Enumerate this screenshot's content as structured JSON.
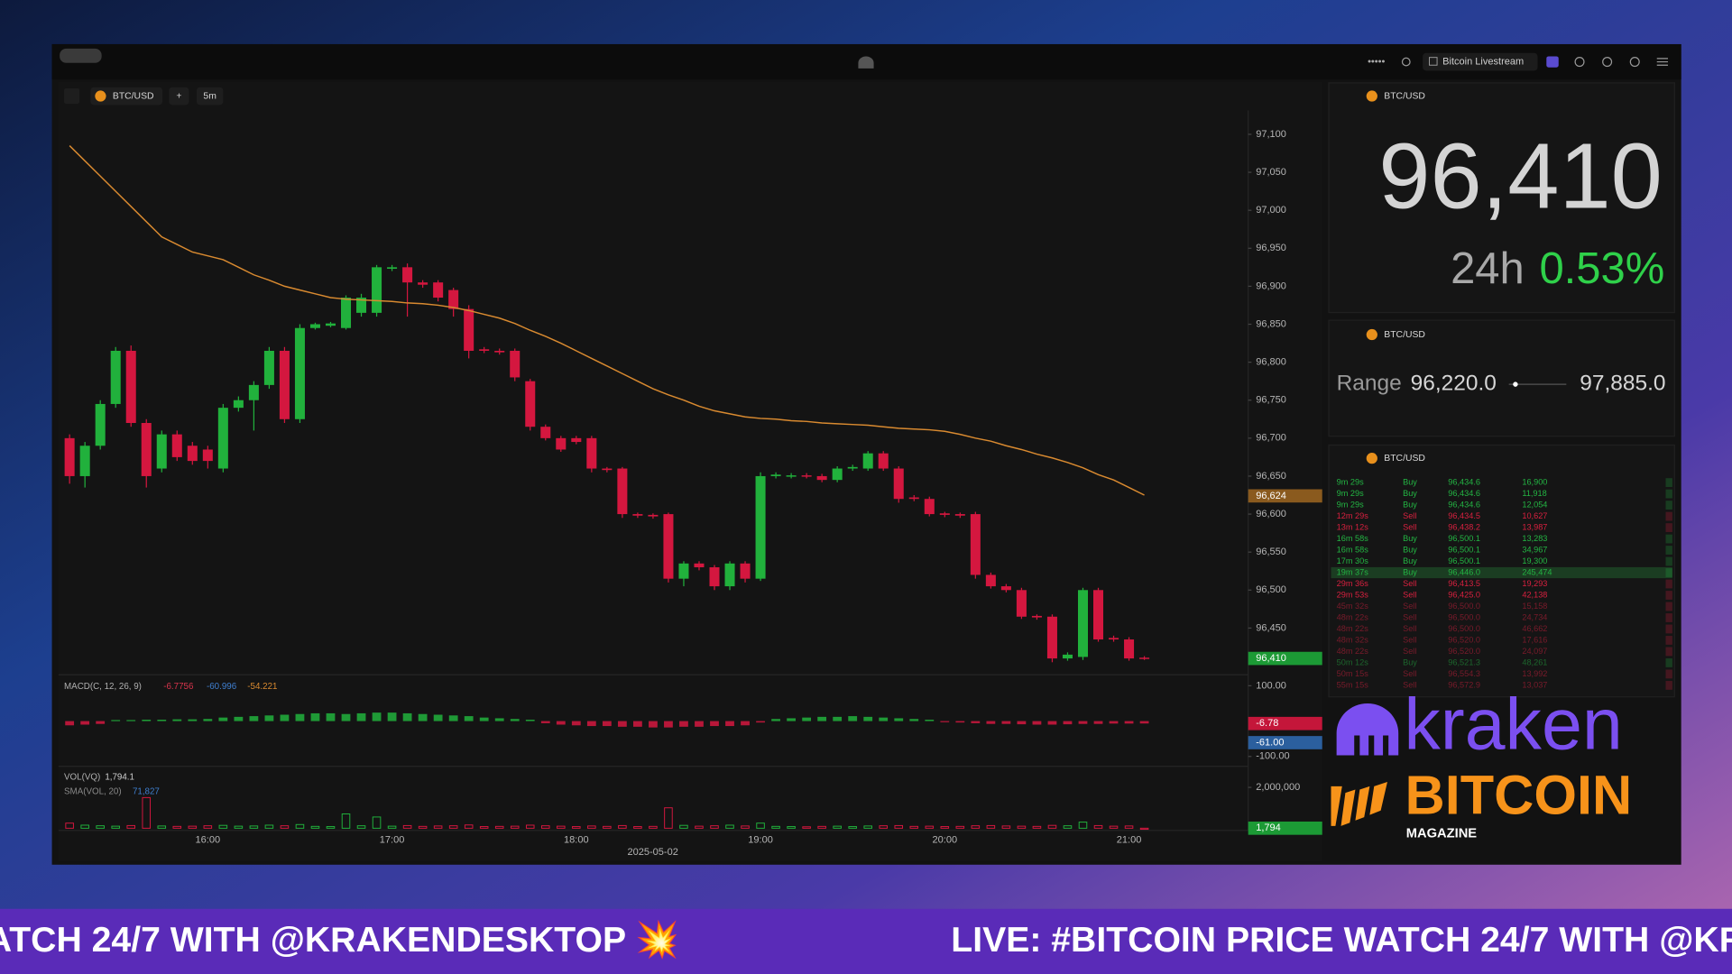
{
  "toolbar": {
    "title": "Bitcoin Livestream"
  },
  "chart_header": {
    "symbol": "BTC/USD",
    "add": "+",
    "interval": "5m"
  },
  "chart_data": {
    "type": "candlestick",
    "categories": [
      null,
      null,
      null,
      null,
      null,
      null,
      null,
      null,
      null,
      "16:00",
      null,
      null,
      null,
      null,
      null,
      null,
      null,
      null,
      null,
      null,
      null,
      "17:00",
      null,
      null,
      null,
      null,
      null,
      null,
      null,
      null,
      null,
      null,
      null,
      "18:00",
      null,
      null,
      null,
      null,
      null,
      null,
      null,
      null,
      null,
      null,
      null,
      "19:00",
      null,
      null,
      null,
      null,
      null,
      null,
      null,
      null,
      null,
      null,
      null,
      "20:00",
      null,
      null,
      null,
      null,
      null,
      null,
      null,
      null,
      null,
      null,
      null,
      "21:00",
      null
    ],
    "date_label": "2025-05-02",
    "open": [
      96700,
      96650,
      96690,
      96745,
      96815,
      96720,
      96660,
      96705,
      96690,
      96685,
      96660,
      96740,
      96750,
      96770,
      96815,
      96725,
      96845,
      96848,
      96845,
      96865,
      96865,
      96923,
      96925,
      96905,
      96905,
      96895,
      96870,
      96817,
      96815,
      96815,
      96775,
      96715,
      96700,
      96700,
      96700,
      96660,
      96660,
      96600,
      96599,
      96600,
      96515,
      96535,
      96530,
      96505,
      96535,
      96515,
      96650,
      96650,
      96651,
      96650,
      96645,
      96660,
      96660,
      96680,
      96660,
      96622,
      96620,
      96601,
      96600,
      96600,
      96520,
      96505,
      96500,
      96466,
      96465,
      96410,
      96412,
      96500,
      96437,
      96435,
      96411
    ],
    "high": [
      96705,
      96695,
      96750,
      96820,
      96822,
      96725,
      96710,
      96710,
      96695,
      96690,
      96745,
      96755,
      96775,
      96820,
      96820,
      96850,
      96852,
      96853,
      96888,
      96890,
      96928,
      96928,
      96930,
      96908,
      96908,
      96898,
      96875,
      96820,
      96818,
      96818,
      96778,
      96718,
      96703,
      96703,
      96703,
      96662,
      96662,
      96602,
      96601,
      96602,
      96538,
      96538,
      96533,
      96538,
      96538,
      96655,
      96655,
      96654,
      96654,
      96653,
      96663,
      96665,
      96683,
      96683,
      96663,
      96625,
      96623,
      96603,
      96602,
      96603,
      96523,
      96508,
      96503,
      96468,
      96468,
      96418,
      96503,
      96503,
      96440,
      96438,
      96413
    ],
    "low": [
      96640,
      96635,
      96685,
      96740,
      96715,
      96635,
      96655,
      96670,
      96665,
      96660,
      96655,
      96735,
      96710,
      96765,
      96720,
      96720,
      96843,
      96846,
      96843,
      96860,
      96860,
      96920,
      96860,
      96898,
      96880,
      96860,
      96805,
      96812,
      96810,
      96775,
      96710,
      96697,
      96682,
      96692,
      96655,
      96655,
      96595,
      96595,
      96594,
      96510,
      96505,
      96526,
      96500,
      96500,
      96510,
      96512,
      96647,
      96647,
      96647,
      96642,
      96642,
      96657,
      96657,
      96657,
      96615,
      96617,
      96597,
      96596,
      96595,
      96515,
      96502,
      96497,
      96462,
      96461,
      96405,
      96407,
      96408,
      96432,
      96432,
      96407,
      96408
    ],
    "close": [
      96650,
      96690,
      96745,
      96815,
      96720,
      96650,
      96705,
      96675,
      96670,
      96670,
      96740,
      96750,
      96770,
      96815,
      96725,
      96845,
      96850,
      96851,
      96885,
      96885,
      96925,
      96925,
      96905,
      96902,
      96885,
      96870,
      96815,
      96815,
      96813,
      96780,
      96715,
      96700,
      96685,
      96695,
      96660,
      96658,
      96600,
      96598,
      96597,
      96515,
      96535,
      96530,
      96505,
      96535,
      96515,
      96650,
      96652,
      96651,
      96650,
      96645,
      96660,
      96662,
      96680,
      96660,
      96620,
      96620,
      96600,
      96599,
      96598,
      96520,
      96505,
      96500,
      96465,
      96464,
      96410,
      96415,
      96500,
      96435,
      96435,
      96410,
      96410
    ],
    "up_color": "#21b13c",
    "down_color": "#d4173f",
    "ma": {
      "color": "#d98a30",
      "values": [
        97085,
        97065,
        97045,
        97025,
        97005,
        96985,
        96965,
        96955,
        96945,
        96940,
        96935,
        96925,
        96915,
        96908,
        96900,
        96895,
        96890,
        96885,
        96883,
        96882,
        96881,
        96880,
        96878,
        96877,
        96875,
        96872,
        96868,
        96863,
        96858,
        96851,
        96842,
        96834,
        96825,
        96815,
        96805,
        96795,
        96785,
        96775,
        96765,
        96757,
        96750,
        96742,
        96736,
        96732,
        96728,
        96726,
        96725,
        96723,
        96722,
        96720,
        96719,
        96718,
        96717,
        96715,
        96713,
        96712,
        96711,
        96709,
        96705,
        96700,
        96696,
        96690,
        96685,
        96679,
        96674,
        96668,
        96661,
        96652,
        96645,
        96635,
        96625
      ]
    },
    "ylim": [
      96390,
      97130
    ],
    "yticks": [
      {
        "value": 96450,
        "label": "96,450"
      },
      {
        "value": 96500,
        "label": "96,500"
      },
      {
        "value": 96550,
        "label": "96,550"
      },
      {
        "value": 96600,
        "label": "96,600"
      },
      {
        "value": 96650,
        "label": "96,650"
      },
      {
        "value": 96700,
        "label": "96,700"
      },
      {
        "value": 96750,
        "label": "96,750"
      },
      {
        "value": 96800,
        "label": "96,800"
      },
      {
        "value": 96850,
        "label": "96,850"
      },
      {
        "value": 96900,
        "label": "96,900"
      },
      {
        "value": 96950,
        "label": "96,950"
      },
      {
        "value": 97000,
        "label": "97,000"
      },
      {
        "value": 97050,
        "label": "97,050"
      },
      {
        "value": 97100,
        "label": "97,100"
      }
    ],
    "grid": false,
    "price_tags": [
      {
        "value": 96624,
        "label": "96,624",
        "color": "#8a5a1e"
      },
      {
        "value": 96410,
        "label": "96,410",
        "color": "#1c9a35"
      }
    ]
  },
  "macd": {
    "label": "MACD(C, 12, 26, 9)",
    "readouts": [
      {
        "value": -6.7756,
        "color": "#d8344c"
      },
      {
        "value": -60.996,
        "color": "#3f7fd0"
      },
      {
        "value": -54.221,
        "color": "#d98a30"
      }
    ],
    "ylim": [
      -125,
      128
    ],
    "yticks": [
      {
        "value": 100,
        "label": "100.00"
      },
      {
        "value": -100,
        "label": "-100.00"
      }
    ],
    "up_color": "#21b13c",
    "down_color": "#d4173f",
    "histogram": [
      -12,
      -10,
      -8,
      3,
      3,
      4,
      4,
      5,
      5,
      6,
      10,
      12,
      14,
      16,
      18,
      20,
      22,
      22,
      20,
      22,
      24,
      24,
      22,
      20,
      18,
      16,
      14,
      10,
      8,
      6,
      4,
      -6,
      -10,
      -12,
      -14,
      -14,
      -16,
      -16,
      -18,
      -18,
      -16,
      -16,
      -14,
      -14,
      -12,
      -4,
      6,
      8,
      10,
      12,
      12,
      14,
      12,
      10,
      8,
      6,
      4,
      -2,
      -4,
      -6,
      -8,
      -8,
      -9,
      -10,
      -10,
      -9,
      -8,
      -8,
      -7,
      -7,
      -6.7756
    ],
    "tags": [
      {
        "value": -6.78,
        "label": "-6.78",
        "color": "#c4163a"
      },
      {
        "value": -61,
        "label": "-61.00",
        "color": "#2b5f9e"
      }
    ]
  },
  "volume": {
    "label": "VOL(VQ)",
    "readout": {
      "value": 1794.1,
      "label": "1,794.1"
    },
    "sma_label": "SMA(VOL, 20)",
    "sma_readout": {
      "value": 71827,
      "label": "71,827",
      "color": "#3f7fd0"
    },
    "ylim": [
      0,
      3000000
    ],
    "yticks": [
      {
        "value": 2000000,
        "label": "2,000,000"
      }
    ],
    "values": [
      250000,
      150000,
      120000,
      100000,
      130000,
      1500000,
      110000,
      90000,
      100000,
      120000,
      140000,
      100000,
      110000,
      150000,
      120000,
      180000,
      90000,
      80000,
      700000,
      120000,
      550000,
      100000,
      130000,
      90000,
      110000,
      120000,
      160000,
      80000,
      90000,
      100000,
      150000,
      120000,
      100000,
      80000,
      110000,
      90000,
      130000,
      80000,
      90000,
      1000000,
      140000,
      100000,
      120000,
      150000,
      110000,
      250000,
      90000,
      80000,
      70000,
      90000,
      100000,
      80000,
      110000,
      120000,
      130000,
      90000,
      100000,
      80000,
      90000,
      120000,
      130000,
      110000,
      100000,
      90000,
      140000,
      120000,
      300000,
      130000,
      100000,
      110000,
      1794.1
    ],
    "tag": {
      "value": 1794,
      "label": "1,794",
      "color": "#1c9a35"
    }
  },
  "ticker_panel": {
    "symbol": "BTC/USD",
    "price": {
      "value": 96410,
      "label": "96,410"
    },
    "period": "24h",
    "change": {
      "value": 0.53,
      "label": "0.53%",
      "color": "#2fd14a"
    }
  },
  "range_panel": {
    "symbol": "BTC/USD",
    "label": "Range",
    "low": {
      "value": 96220,
      "label": "96,220.0"
    },
    "high": {
      "value": 97885,
      "label": "97,885.0"
    }
  },
  "trades_panel": {
    "symbol": "BTC/USD",
    "side_colors": {
      "Buy": "#23b543",
      "Sell": "#d8203f"
    },
    "rows": [
      [
        "9m 29s",
        "Buy",
        "96,434.6",
        "16,900"
      ],
      [
        "9m 29s",
        "Buy",
        "96,434.6",
        "11,918"
      ],
      [
        "9m 29s",
        "Buy",
        "96,434.6",
        "12,054"
      ],
      [
        "12m 29s",
        "Sell",
        "96,434.5",
        "10,627"
      ],
      [
        "13m 12s",
        "Sell",
        "96,438.2",
        "13,987"
      ],
      [
        "16m 58s",
        "Buy",
        "96,500.1",
        "13,283"
      ],
      [
        "16m 58s",
        "Buy",
        "96,500.1",
        "34,967"
      ],
      [
        "17m 30s",
        "Buy",
        "96,500.1",
        "19,300"
      ],
      [
        "19m 37s",
        "Buy",
        "96,446.0",
        "245,474"
      ],
      [
        "29m 36s",
        "Sell",
        "96,413.5",
        "19,293"
      ],
      [
        "29m 53s",
        "Sell",
        "96,425.0",
        "42,138"
      ],
      [
        "45m 32s",
        "Sell",
        "96,500.0",
        "15,158"
      ],
      [
        "48m 22s",
        "Sell",
        "96,500.0",
        "24,734"
      ],
      [
        "48m 22s",
        "Sell",
        "96,500.0",
        "46,662"
      ],
      [
        "48m 32s",
        "Sell",
        "96,520.0",
        "17,616"
      ],
      [
        "48m 22s",
        "Sell",
        "96,520.0",
        "24,097"
      ],
      [
        "50m 12s",
        "Buy",
        "96,521.3",
        "48,261"
      ],
      [
        "50m 15s",
        "Sell",
        "96,554.3",
        "13,992"
      ],
      [
        "55m 15s",
        "Sell",
        "96,572.9",
        "13,037"
      ]
    ]
  },
  "logos": {
    "kraken": "kraken",
    "bitcoin": "BITCOIN",
    "magazine": "MAGAZINE"
  },
  "ticker_tape": {
    "text": "LIVE: #BITCOIN PRICE WATCH 24/7 WITH @KRAKENDESKTOP 💥"
  }
}
